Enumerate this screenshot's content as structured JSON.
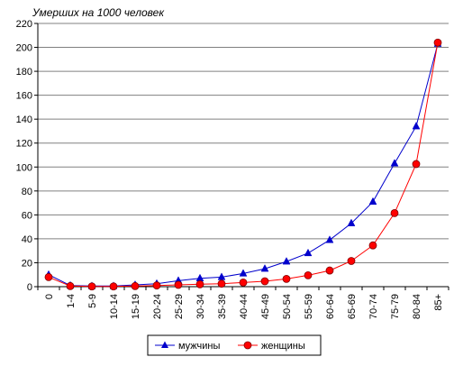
{
  "chart_data": {
    "type": "line",
    "ylabel": "Умерших на 1000 человек",
    "xlabel": "",
    "title": "",
    "ylim": [
      0,
      220
    ],
    "yticks": [
      0,
      20,
      40,
      60,
      80,
      100,
      120,
      140,
      160,
      180,
      200,
      220
    ],
    "categories": [
      "0",
      "1-4",
      "5-9",
      "10-14",
      "15-19",
      "20-24",
      "25-29",
      "30-34",
      "35-39",
      "40-44",
      "45-49",
      "50-54",
      "55-59",
      "60-64",
      "65-69",
      "70-74",
      "75-79",
      "80-84",
      "85+"
    ],
    "series": [
      {
        "name": "мужчины",
        "color": "#0000CC",
        "marker": "triangle",
        "values": [
          10,
          1,
          0.5,
          0.5,
          1.5,
          2.5,
          5,
          7,
          8,
          11,
          15,
          21,
          28,
          39,
          53,
          71,
          103,
          134,
          203
        ]
      },
      {
        "name": "женщины",
        "color": "#FF0000",
        "marker": "circle",
        "values": [
          8,
          0.5,
          0.2,
          0.2,
          0.5,
          1,
          1.5,
          2,
          2.5,
          3.5,
          4.5,
          6.5,
          9.5,
          13.5,
          21.5,
          34.5,
          61.5,
          102.5,
          204
        ]
      }
    ],
    "grid": "horizontal",
    "legend": "bottom-center"
  }
}
